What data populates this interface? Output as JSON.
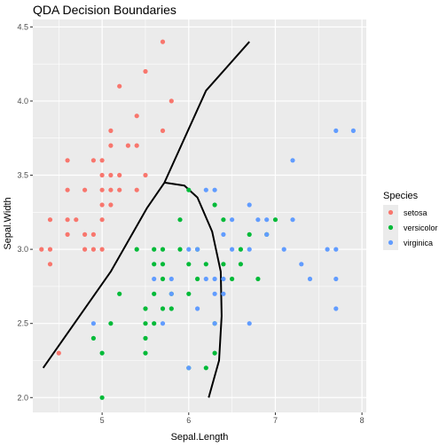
{
  "chart_data": {
    "type": "scatter",
    "title": "QDA Decision Boundaries",
    "xlabel": "Sepal.Length",
    "ylabel": "Sepal.Width",
    "xlim": [
      4.2,
      8.05
    ],
    "ylim": [
      1.9,
      4.55
    ],
    "x_ticks": [
      5,
      6,
      7,
      8
    ],
    "y_ticks": [
      2.0,
      2.5,
      3.0,
      3.5,
      4.0,
      4.5
    ],
    "x_tick_labels": [
      "5",
      "6",
      "7",
      "8"
    ],
    "y_tick_labels": [
      "2.0",
      "2.5",
      "3.0",
      "3.5",
      "4.0",
      "4.5"
    ],
    "grid": true,
    "legend": {
      "title": "Species",
      "position": "right",
      "entries": [
        "setosa",
        "versicolor",
        "virginica"
      ]
    },
    "colors": {
      "setosa": "#F8766D",
      "versicolor": "#00BA38",
      "virginica": "#619CFF",
      "panel_background": "#EBEBEB",
      "grid": "#FFFFFF",
      "boundary": "#000000"
    },
    "series": [
      {
        "name": "setosa",
        "points": [
          [
            4.3,
            3.0
          ],
          [
            4.4,
            2.9
          ],
          [
            4.4,
            3.0
          ],
          [
            4.4,
            3.2
          ],
          [
            4.5,
            2.3
          ],
          [
            4.6,
            3.1
          ],
          [
            4.6,
            3.2
          ],
          [
            4.6,
            3.4
          ],
          [
            4.6,
            3.6
          ],
          [
            4.7,
            3.2
          ],
          [
            4.8,
            3.0
          ],
          [
            4.8,
            3.1
          ],
          [
            4.8,
            3.4
          ],
          [
            4.9,
            3.0
          ],
          [
            4.9,
            3.1
          ],
          [
            4.9,
            3.6
          ],
          [
            5.0,
            3.0
          ],
          [
            5.0,
            3.2
          ],
          [
            5.0,
            3.3
          ],
          [
            5.0,
            3.4
          ],
          [
            5.0,
            3.5
          ],
          [
            5.0,
            3.6
          ],
          [
            5.1,
            3.3
          ],
          [
            5.1,
            3.4
          ],
          [
            5.1,
            3.5
          ],
          [
            5.1,
            3.7
          ],
          [
            5.1,
            3.8
          ],
          [
            5.2,
            3.4
          ],
          [
            5.2,
            3.5
          ],
          [
            5.2,
            4.1
          ],
          [
            5.3,
            3.7
          ],
          [
            5.4,
            3.4
          ],
          [
            5.4,
            3.7
          ],
          [
            5.4,
            3.9
          ],
          [
            5.5,
            3.5
          ],
          [
            5.5,
            4.2
          ],
          [
            5.7,
            3.8
          ],
          [
            5.7,
            4.4
          ],
          [
            5.8,
            4.0
          ]
        ]
      },
      {
        "name": "versicolor",
        "points": [
          [
            4.9,
            2.4
          ],
          [
            5.0,
            2.0
          ],
          [
            5.0,
            2.3
          ],
          [
            5.1,
            2.5
          ],
          [
            5.2,
            2.7
          ],
          [
            5.4,
            3.0
          ],
          [
            5.5,
            2.3
          ],
          [
            5.5,
            2.4
          ],
          [
            5.5,
            2.5
          ],
          [
            5.5,
            2.6
          ],
          [
            5.6,
            2.5
          ],
          [
            5.6,
            2.7
          ],
          [
            5.6,
            2.9
          ],
          [
            5.6,
            3.0
          ],
          [
            5.7,
            2.6
          ],
          [
            5.7,
            2.8
          ],
          [
            5.7,
            2.9
          ],
          [
            5.7,
            3.0
          ],
          [
            5.8,
            2.6
          ],
          [
            5.8,
            2.7
          ],
          [
            5.9,
            3.0
          ],
          [
            5.9,
            3.2
          ],
          [
            6.0,
            2.2
          ],
          [
            6.0,
            2.7
          ],
          [
            6.0,
            2.9
          ],
          [
            6.0,
            3.4
          ],
          [
            6.1,
            2.8
          ],
          [
            6.1,
            3.0
          ],
          [
            6.2,
            2.2
          ],
          [
            6.2,
            2.9
          ],
          [
            6.3,
            2.3
          ],
          [
            6.3,
            2.5
          ],
          [
            6.3,
            3.3
          ],
          [
            6.4,
            2.9
          ],
          [
            6.4,
            3.2
          ],
          [
            6.5,
            2.8
          ],
          [
            6.6,
            2.9
          ],
          [
            6.6,
            3.0
          ],
          [
            6.7,
            3.1
          ],
          [
            6.8,
            2.8
          ],
          [
            6.9,
            3.1
          ],
          [
            7.0,
            3.2
          ]
        ]
      },
      {
        "name": "virginica",
        "points": [
          [
            4.9,
            2.5
          ],
          [
            5.6,
            2.8
          ],
          [
            5.7,
            2.5
          ],
          [
            5.8,
            2.7
          ],
          [
            5.8,
            2.8
          ],
          [
            6.0,
            2.2
          ],
          [
            6.0,
            3.0
          ],
          [
            6.1,
            2.6
          ],
          [
            6.1,
            3.0
          ],
          [
            6.2,
            2.8
          ],
          [
            6.2,
            3.4
          ],
          [
            6.3,
            2.5
          ],
          [
            6.3,
            2.7
          ],
          [
            6.3,
            2.8
          ],
          [
            6.3,
            3.4
          ],
          [
            6.4,
            2.7
          ],
          [
            6.4,
            2.8
          ],
          [
            6.4,
            3.1
          ],
          [
            6.5,
            3.0
          ],
          [
            6.5,
            3.2
          ],
          [
            6.7,
            2.5
          ],
          [
            6.7,
            3.0
          ],
          [
            6.7,
            3.3
          ],
          [
            6.8,
            3.2
          ],
          [
            6.9,
            3.1
          ],
          [
            6.9,
            3.2
          ],
          [
            7.1,
            3.0
          ],
          [
            7.2,
            3.2
          ],
          [
            7.2,
            3.6
          ],
          [
            7.3,
            2.9
          ],
          [
            7.4,
            2.8
          ],
          [
            7.6,
            3.0
          ],
          [
            7.7,
            2.6
          ],
          [
            7.7,
            2.8
          ],
          [
            7.7,
            3.0
          ],
          [
            7.7,
            3.8
          ],
          [
            7.9,
            3.8
          ]
        ]
      }
    ],
    "boundaries": [
      {
        "name": "setosa-versicolor",
        "points": [
          [
            4.32,
            2.2
          ],
          [
            5.1,
            2.85
          ],
          [
            5.52,
            3.28
          ],
          [
            5.72,
            3.45
          ],
          [
            6.2,
            4.07
          ],
          [
            6.7,
            4.4
          ]
        ]
      },
      {
        "name": "versicolor-virginica",
        "points": [
          [
            5.72,
            3.45
          ],
          [
            5.95,
            3.43
          ],
          [
            6.1,
            3.35
          ],
          [
            6.27,
            3.12
          ],
          [
            6.37,
            2.85
          ],
          [
            6.38,
            2.55
          ],
          [
            6.35,
            2.25
          ],
          [
            6.23,
            2.0
          ]
        ]
      }
    ]
  }
}
